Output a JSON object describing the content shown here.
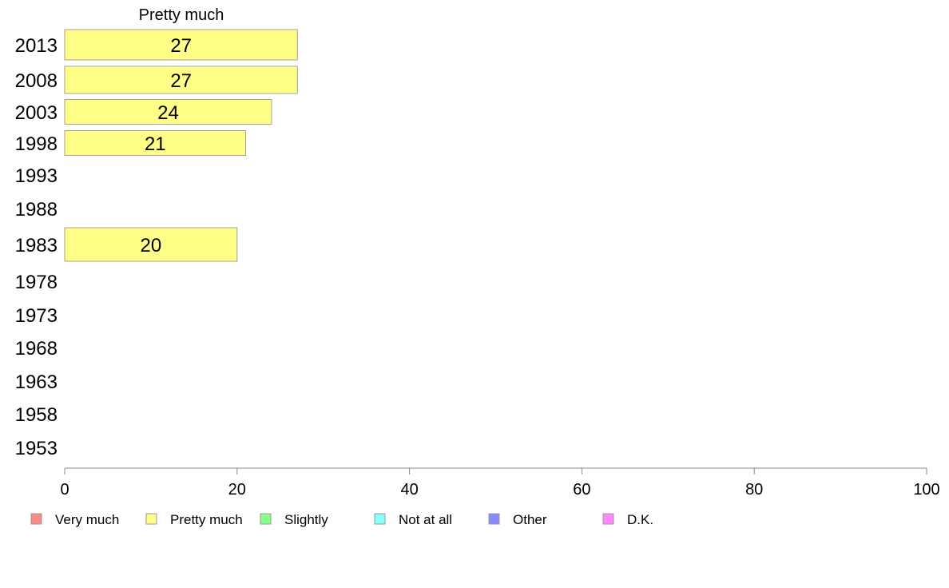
{
  "chart_data": {
    "type": "bar",
    "orientation": "horizontal",
    "title": "",
    "xlabel": "",
    "ylabel": "",
    "series_title": "Pretty much",
    "categories": [
      "2013",
      "2008",
      "2003",
      "1998",
      "1993",
      "1988",
      "1983",
      "1978",
      "1973",
      "1968",
      "1963",
      "1958",
      "1953"
    ],
    "series": [
      {
        "name": "Pretty much",
        "color": "#ffff88",
        "values": [
          27,
          27,
          24,
          21,
          null,
          null,
          20,
          null,
          null,
          null,
          null,
          null,
          null
        ]
      }
    ],
    "value_labels": [
      "27",
      "27",
      "24",
      "21",
      "",
      "",
      "20",
      "",
      "",
      "",
      "",
      "",
      ""
    ],
    "xlim": [
      0,
      100
    ],
    "x_ticks": [
      "0",
      "20",
      "40",
      "60",
      "80",
      "100"
    ],
    "grid": false,
    "legend_position": "bottom",
    "legend": [
      {
        "label": "Very much",
        "color": "#ff8888"
      },
      {
        "label": "Pretty much",
        "color": "#ffff88"
      },
      {
        "label": "Slightly",
        "color": "#88ff88"
      },
      {
        "label": "Not at all",
        "color": "#88ffff"
      },
      {
        "label": "Other",
        "color": "#8888ff"
      },
      {
        "label": "D.K.",
        "color": "#ff88ff"
      }
    ]
  }
}
